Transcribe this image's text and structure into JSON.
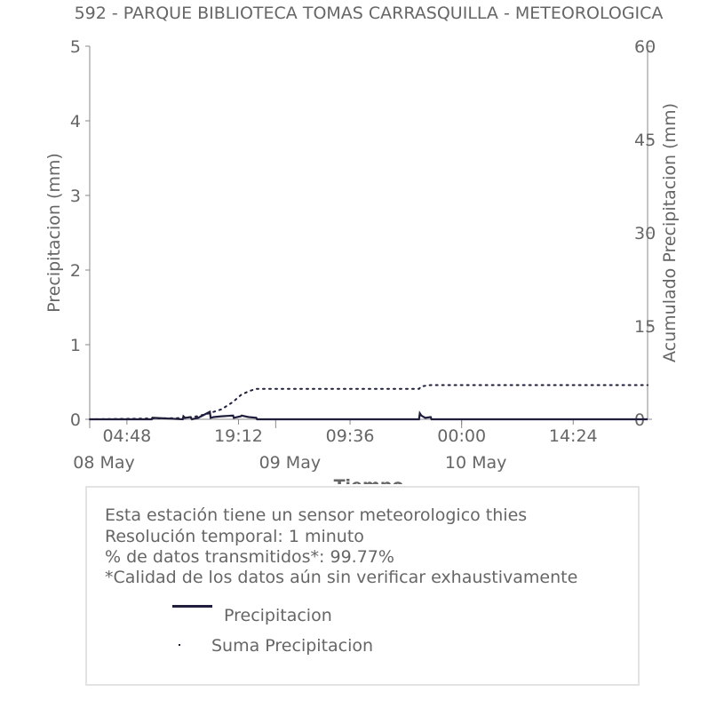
{
  "chart_data": {
    "type": "line",
    "title": "592 - PARQUE BIBLIOTECA TOMAS CARRASQUILLA - METEOROLOGICA",
    "xlabel": "Tiempo",
    "ylabel": "Precipitacion (mm)",
    "y2label": "Acumulado Precipitacion (mm)",
    "ylim": [
      0,
      5
    ],
    "y2lim": [
      0,
      60
    ],
    "yticks": [
      "0",
      "1",
      "2",
      "3",
      "4",
      "5"
    ],
    "y2ticks": [
      "0",
      "15",
      "30",
      "45",
      "60"
    ],
    "xlim_hours": [
      0,
      72
    ],
    "xticks_time": [
      {
        "hour": 4.8,
        "label": "04:48"
      },
      {
        "hour": 19.2,
        "label": "19:12"
      },
      {
        "hour": 33.6,
        "label": "09:36"
      },
      {
        "hour": 48.0,
        "label": "00:00"
      },
      {
        "hour": 62.4,
        "label": "14:24"
      }
    ],
    "xticks_date": [
      {
        "hour": 0,
        "label": "08 May"
      },
      {
        "hour": 24,
        "label": "09 May"
      },
      {
        "hour": 48,
        "label": "10 May"
      }
    ],
    "grid": false,
    "series": [
      {
        "name": "Precipitacion",
        "style": "solid",
        "color": "#1f1f3d",
        "axis": "left",
        "x_hours": [
          0,
          8.0,
          8.1,
          12.0,
          12.1,
          12.3,
          13.0,
          13.2,
          14.0,
          15.5,
          15.6,
          16.0,
          17.0,
          18.5,
          18.6,
          19.5,
          19.6,
          20.5,
          21.5,
          21.6,
          42.5,
          42.6,
          42.8,
          43.3,
          44.0,
          44.1,
          72.0
        ],
        "values": [
          0,
          0,
          0.02,
          0,
          0.04,
          0.02,
          0.03,
          0,
          0.02,
          0.1,
          0.02,
          0.03,
          0.04,
          0.05,
          0.02,
          0.04,
          0.05,
          0.03,
          0.02,
          0,
          0,
          0.08,
          0.05,
          0.02,
          0.03,
          0,
          0
        ]
      },
      {
        "name": "Suma Precipitacion",
        "style": "dotted",
        "color": "#1f1f3d",
        "axis": "right",
        "x_hours": [
          0,
          12.0,
          14.0,
          15.5,
          17.0,
          18.5,
          19.5,
          20.5,
          21.5,
          42.5,
          42.8,
          44.0,
          72.0
        ],
        "values": [
          0,
          0.2,
          0.5,
          1.0,
          1.6,
          2.8,
          3.9,
          4.5,
          4.9,
          4.9,
          5.3,
          5.5,
          5.5
        ]
      }
    ]
  },
  "info": {
    "line1": "Esta estación tiene un sensor meteorologico thies",
    "line2": "Resolución temporal: 1 minuto",
    "line3": "% de datos transmitidos*: 99.77%",
    "line4": "*Calidad de los datos aún sin verificar exhaustivamente"
  },
  "legend": {
    "item1": "Precipitacion",
    "item2": "Suma Precipitacion"
  }
}
